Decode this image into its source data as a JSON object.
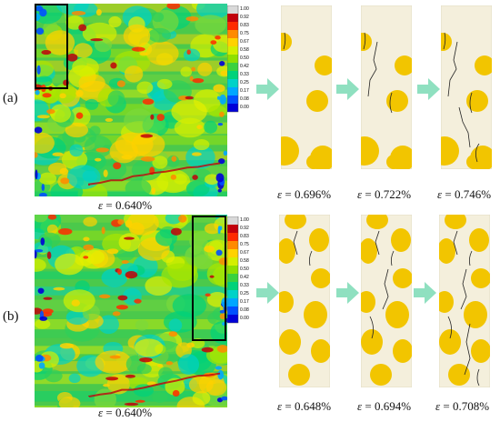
{
  "rows": [
    {
      "label": "(a)",
      "main_caption": {
        "symbol": "ε",
        "value": "= 0.640%"
      },
      "stages": [
        {
          "symbol": "ε",
          "value": "= 0.696%"
        },
        {
          "symbol": "ε",
          "value": "= 0.722%"
        },
        {
          "symbol": "ε",
          "value": "= 0.746%"
        }
      ]
    },
    {
      "label": "(b)",
      "main_caption": {
        "symbol": "ε",
        "value": "= 0.640%"
      },
      "stages": [
        {
          "symbol": "ε",
          "value": "= 0.648%"
        },
        {
          "symbol": "ε",
          "value": "= 0.694%"
        },
        {
          "symbol": "ε",
          "value": "= 0.708%"
        }
      ]
    }
  ],
  "colorbar": {
    "ticks": [
      "1.00",
      "0.92",
      "0.83",
      "0.75",
      "0.67",
      "0.58",
      "0.50",
      "0.42",
      "0.33",
      "0.25",
      "0.17",
      "0.08",
      "0.00"
    ],
    "colors": [
      "#d9d9d9",
      "#c2000b",
      "#ff2a00",
      "#ff8a00",
      "#ffd200",
      "#d4ef00",
      "#8fe000",
      "#39d23f",
      "#00d27a",
      "#00d2c8",
      "#00a7ff",
      "#0050ff",
      "#0000d8"
    ]
  },
  "colors": {
    "particle": "#f2c500",
    "matrix": "#f4efdc",
    "arrow": "#8fe0c0",
    "field_base": "#4bc94b"
  }
}
